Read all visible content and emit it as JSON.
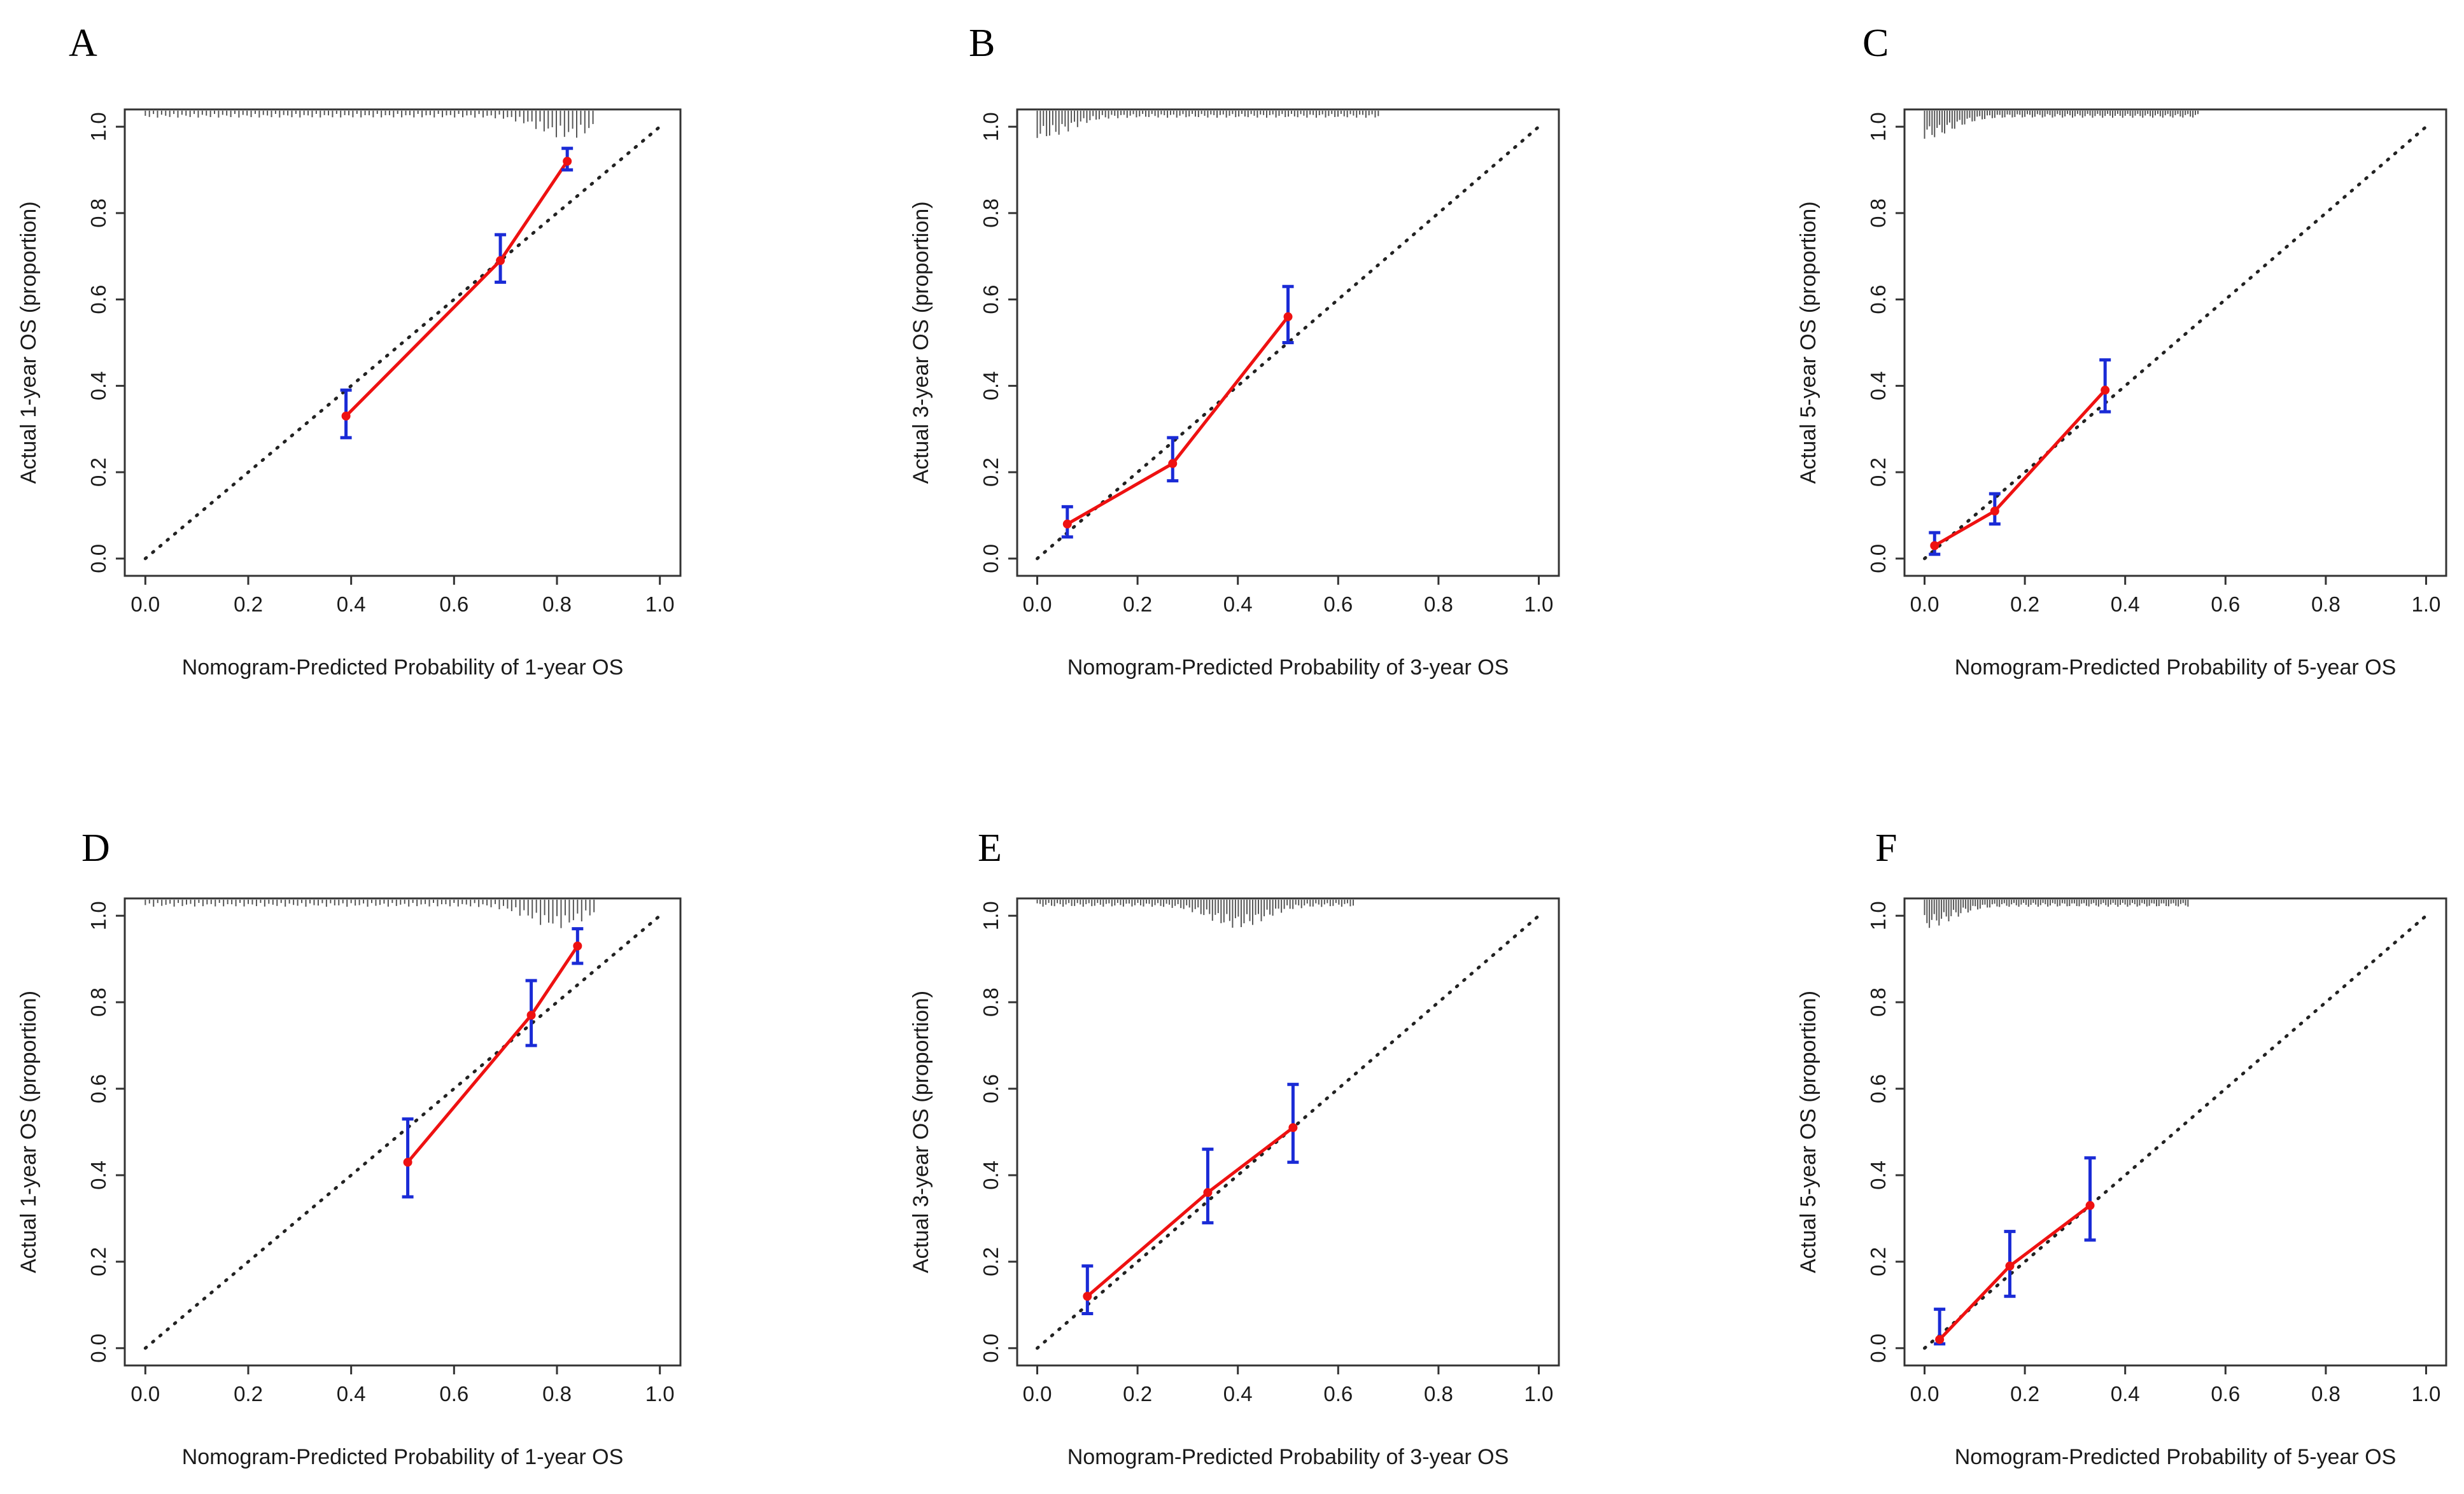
{
  "figure": {
    "panels": [
      "A",
      "B",
      "C",
      "D",
      "E",
      "F"
    ]
  },
  "colors": {
    "calibration_line": "#ee1111",
    "point": "#ee1111",
    "error_bar": "#1a2bd6",
    "ideal_line": "#222222",
    "frame": "#333333",
    "rug": "#555555"
  },
  "chart_data": [
    {
      "panel": "A",
      "type": "line",
      "title": "",
      "xlabel": "Nomogram-Predicted Probability of 1-year OS",
      "ylabel": "Actual 1-year OS (proportion)",
      "xlim": [
        0,
        1
      ],
      "ylim": [
        0,
        1
      ],
      "x_ticks": [
        "0.0",
        "0.2",
        "0.4",
        "0.6",
        "0.8",
        "1.0"
      ],
      "y_ticks": [
        "0.0",
        "0.2",
        "0.4",
        "0.6",
        "0.8",
        "1.0"
      ],
      "reference_line": "ideal (y = x)",
      "points": [
        {
          "x": 0.39,
          "y": 0.33,
          "lower": 0.28,
          "upper": 0.39
        },
        {
          "x": 0.69,
          "y": 0.69,
          "lower": 0.64,
          "upper": 0.75
        },
        {
          "x": 0.82,
          "y": 0.92,
          "lower": 0.9,
          "upper": 0.95
        }
      ],
      "rug": {
        "from": 0.0,
        "to": 0.87,
        "peak": 0.82
      }
    },
    {
      "panel": "B",
      "type": "line",
      "title": "",
      "xlabel": "Nomogram-Predicted Probability of 3-year OS",
      "ylabel": "Actual 3-year OS (proportion)",
      "xlim": [
        0,
        1
      ],
      "ylim": [
        0,
        1
      ],
      "x_ticks": [
        "0.0",
        "0.2",
        "0.4",
        "0.6",
        "0.8",
        "1.0"
      ],
      "y_ticks": [
        "0.0",
        "0.2",
        "0.4",
        "0.6",
        "0.8",
        "1.0"
      ],
      "reference_line": "ideal (y = x)",
      "points": [
        {
          "x": 0.06,
          "y": 0.08,
          "lower": 0.05,
          "upper": 0.12
        },
        {
          "x": 0.27,
          "y": 0.22,
          "lower": 0.18,
          "upper": 0.28
        },
        {
          "x": 0.5,
          "y": 0.56,
          "lower": 0.5,
          "upper": 0.63
        }
      ],
      "rug": {
        "from": 0.0,
        "to": 0.68,
        "peak": 0.01
      }
    },
    {
      "panel": "C",
      "type": "line",
      "title": "",
      "xlabel": "Nomogram-Predicted Probability of 5-year OS",
      "ylabel": "Actual 5-year OS (proportion)",
      "xlim": [
        0,
        1
      ],
      "ylim": [
        0,
        1
      ],
      "x_ticks": [
        "0.0",
        "0.2",
        "0.4",
        "0.6",
        "0.8",
        "1.0"
      ],
      "y_ticks": [
        "0.0",
        "0.2",
        "0.4",
        "0.6",
        "0.8",
        "1.0"
      ],
      "reference_line": "ideal (y = x)",
      "points": [
        {
          "x": 0.02,
          "y": 0.03,
          "lower": 0.01,
          "upper": 0.06
        },
        {
          "x": 0.14,
          "y": 0.11,
          "lower": 0.08,
          "upper": 0.15
        },
        {
          "x": 0.36,
          "y": 0.39,
          "lower": 0.34,
          "upper": 0.46
        }
      ],
      "rug": {
        "from": 0.0,
        "to": 0.55,
        "peak": 0.0
      }
    },
    {
      "panel": "D",
      "type": "line",
      "title": "",
      "xlabel": "Nomogram-Predicted Probability of 1-year OS",
      "ylabel": "Actual 1-year OS (proportion)",
      "xlim": [
        0,
        1
      ],
      "ylim": [
        0,
        1
      ],
      "x_ticks": [
        "0.0",
        "0.2",
        "0.4",
        "0.6",
        "0.8",
        "1.0"
      ],
      "y_ticks": [
        "0.0",
        "0.2",
        "0.4",
        "0.6",
        "0.8",
        "1.0"
      ],
      "reference_line": "ideal (y = x)",
      "points": [
        {
          "x": 0.51,
          "y": 0.43,
          "lower": 0.35,
          "upper": 0.53
        },
        {
          "x": 0.75,
          "y": 0.77,
          "lower": 0.7,
          "upper": 0.85
        },
        {
          "x": 0.84,
          "y": 0.93,
          "lower": 0.89,
          "upper": 0.97
        }
      ],
      "rug": {
        "from": 0.0,
        "to": 0.88,
        "peak": 0.8
      }
    },
    {
      "panel": "E",
      "type": "line",
      "title": "",
      "xlabel": "Nomogram-Predicted Probability of 3-year OS",
      "ylabel": "Actual 3-year OS (proportion)",
      "xlim": [
        0,
        1
      ],
      "ylim": [
        0,
        1
      ],
      "x_ticks": [
        "0.0",
        "0.2",
        "0.4",
        "0.6",
        "0.8",
        "1.0"
      ],
      "y_ticks": [
        "0.0",
        "0.2",
        "0.4",
        "0.6",
        "0.8",
        "1.0"
      ],
      "reference_line": "ideal (y = x)",
      "points": [
        {
          "x": 0.1,
          "y": 0.12,
          "lower": 0.08,
          "upper": 0.19
        },
        {
          "x": 0.34,
          "y": 0.36,
          "lower": 0.29,
          "upper": 0.46
        },
        {
          "x": 0.51,
          "y": 0.51,
          "lower": 0.43,
          "upper": 0.61
        }
      ],
      "rug": {
        "from": 0.0,
        "to": 0.63,
        "peak": 0.4
      }
    },
    {
      "panel": "F",
      "type": "line",
      "title": "",
      "xlabel": "Nomogram-Predicted Probability of 5-year OS",
      "ylabel": "Actual 5-year OS (proportion)",
      "xlim": [
        0,
        1
      ],
      "ylim": [
        0,
        1
      ],
      "x_ticks": [
        "0.0",
        "0.2",
        "0.4",
        "0.6",
        "0.8",
        "1.0"
      ],
      "y_ticks": [
        "0.0",
        "0.2",
        "0.4",
        "0.6",
        "0.8",
        "1.0"
      ],
      "reference_line": "ideal (y = x)",
      "points": [
        {
          "x": 0.03,
          "y": 0.02,
          "lower": 0.01,
          "upper": 0.09
        },
        {
          "x": 0.17,
          "y": 0.19,
          "lower": 0.12,
          "upper": 0.27
        },
        {
          "x": 0.33,
          "y": 0.33,
          "lower": 0.25,
          "upper": 0.44
        }
      ],
      "rug": {
        "from": 0.0,
        "to": 0.53,
        "peak": 0.0
      }
    }
  ]
}
